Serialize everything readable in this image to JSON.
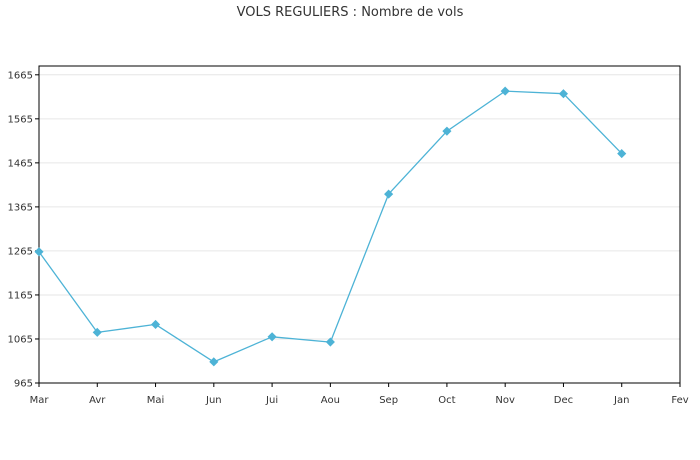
{
  "chart_data": {
    "type": "line",
    "title": "VOLS REGULIERS : Nombre de vols",
    "xlabel": "",
    "ylabel": "",
    "categories": [
      "Mar",
      "Avr",
      "Mai",
      "Jun",
      "Jui",
      "Aou",
      "Sep",
      "Oct",
      "Nov",
      "Dec",
      "Jan",
      "Fev"
    ],
    "ylim": [
      965,
      1685
    ],
    "yticks": [
      965,
      1065,
      1165,
      1265,
      1365,
      1465,
      1565,
      1665
    ],
    "grid": true,
    "series": [
      {
        "values": [
          1263,
          1080,
          1098,
          1013,
          1070,
          1058,
          1394,
          1537,
          1628,
          1622,
          1486,
          null
        ]
      }
    ],
    "colors": {
      "line": "#4db3d6",
      "marker": "#4db3d6",
      "grid": "#e6e6e6",
      "axis": "#000000"
    }
  }
}
